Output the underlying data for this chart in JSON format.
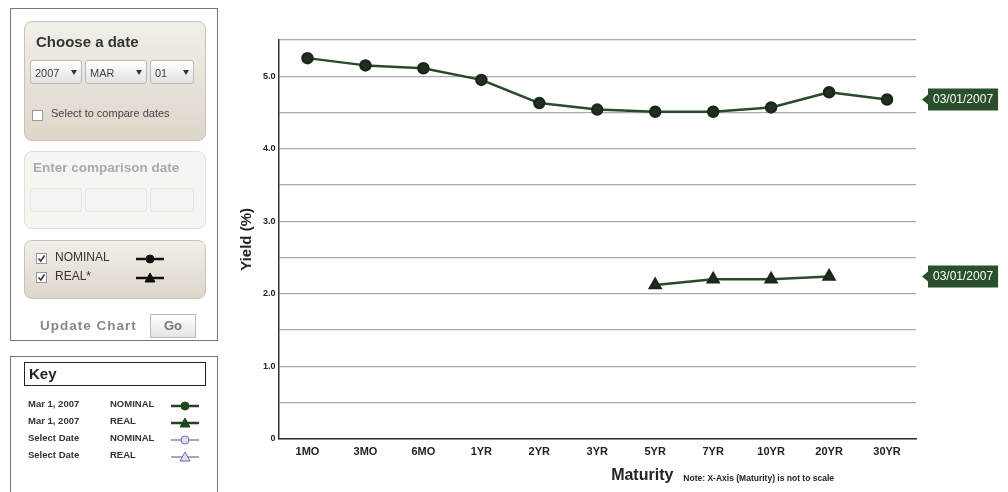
{
  "chart_data": [
    {
      "type": "other",
      "annotations": [
        "Choose a date",
        "2007",
        "MAR",
        "01",
        "Select to compare dates",
        "Enter comparison date",
        "NOMINAL",
        "REAL*",
        "Update Chart",
        "Go",
        "Key",
        "Mar 1, 2007",
        "NOMINAL",
        "Mar 1, 2007",
        "REAL",
        "Select Date",
        "NOMINAL",
        "Select Date",
        "REAL"
      ]
    },
    {
      "type": "line",
      "categories": [
        "1MO",
        "3MO",
        "6MO",
        "1YR",
        "2YR",
        "3YR",
        "5YR",
        "7YR",
        "10YR",
        "20YR",
        "30YR"
      ],
      "series": [
        {
          "color": "#2b4a2b",
          "marker": "circle",
          "values": [
            5.25,
            5.15,
            5.11,
            4.95,
            4.63,
            4.54,
            4.51,
            4.51,
            4.57,
            4.78,
            4.68
          ]
        },
        {
          "color": "#2b4a2b",
          "marker": "triangle",
          "values": [
            null,
            null,
            null,
            null,
            null,
            null,
            2.12,
            2.2,
            2.2,
            2.24,
            null
          ]
        }
      ],
      "ylim": [
        0,
        5.5
      ],
      "yticks": [
        0,
        {
          "value": 0.5,
          "label": null
        },
        {
          "value": 1,
          "label": "1.0"
        },
        {
          "value": 1.5,
          "label": null
        },
        {
          "value": 2,
          "label": "2.0"
        },
        {
          "value": 2.5,
          "label": null
        },
        {
          "value": 3,
          "label": "3.0"
        },
        {
          "value": 3.5,
          "label": null
        },
        {
          "value": 4,
          "label": "4.0"
        },
        {
          "value": 4.5,
          "label": null
        },
        {
          "value": 5,
          "label": "5.0"
        },
        {
          "value": 5.5,
          "label": null
        }
      ],
      "ylabel": "Yield (%)",
      "xlabel": "Maturity",
      "grid": "y",
      "legend": false,
      "annotations": [
        "Note: X-Axis (Maturity) is not to scale",
        "03/01/2007",
        "03/01/2007"
      ]
    }
  ]
}
